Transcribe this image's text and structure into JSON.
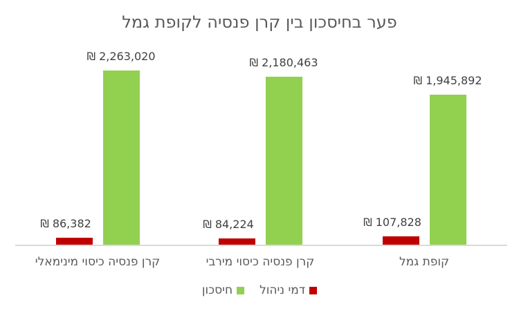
{
  "chart_data": {
    "type": "bar",
    "title": "פער בחיסכון בין קרן פנסיה לקופת גמל",
    "categories": [
      "קרן פנסיה כיסוי מינימאלי",
      "קרן פנסיה כיסוי מירבי",
      "קופת גמל"
    ],
    "series": [
      {
        "name": "דמי ניהול",
        "color": "#C00000",
        "values": [
          86382,
          84224,
          107828
        ],
        "labels": [
          "₪ 86,382",
          "₪ 84,224",
          "₪ 107,828"
        ]
      },
      {
        "name": "חיסכון",
        "color": "#92D050",
        "values": [
          2263020,
          2180463,
          1945892
        ],
        "labels": [
          "₪ 2,263,020",
          "₪ 2,180,463",
          "₪ 1,945,892"
        ]
      }
    ],
    "xlabel": "",
    "ylabel": "",
    "grid": false,
    "legend_position": "bottom"
  },
  "title": "פער בחיסכון בין קרן פנסיה לקופת גמל",
  "legend": {
    "fees": "דמי ניהול",
    "savings": "חיסכון"
  }
}
